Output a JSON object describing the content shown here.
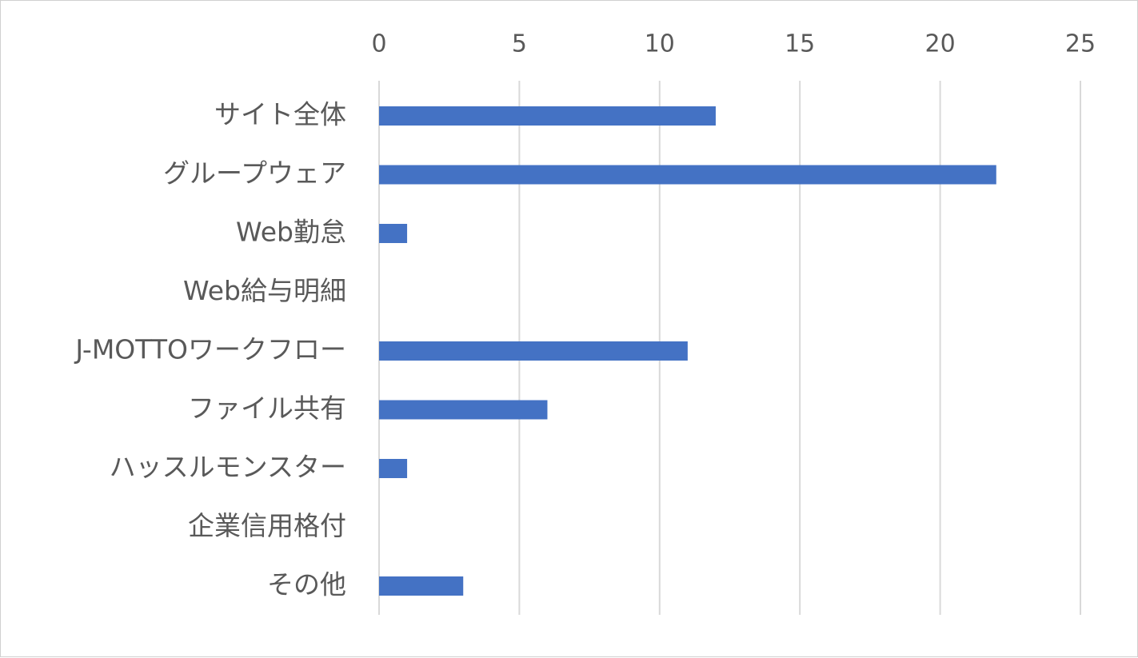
{
  "chart_data": {
    "type": "bar",
    "orientation": "horizontal",
    "categories": [
      "サイト全体",
      "グループウェア",
      "Web勤怠",
      "Web給与明細",
      "J-MOTTOワークフロー",
      "ファイル共有",
      "ハッスルモンスター",
      "企業信用格付",
      "その他"
    ],
    "values": [
      12,
      22,
      1,
      0,
      11,
      6,
      1,
      0,
      3
    ],
    "xlim": [
      0,
      25
    ],
    "x_ticks": [
      "0",
      "5",
      "10",
      "15",
      "20",
      "25"
    ],
    "x_axis_position": "top",
    "grid": true,
    "legend": "none",
    "bar_color": "#4472c4",
    "grid_color": "#d9d9d9",
    "label_color": "#595959"
  }
}
